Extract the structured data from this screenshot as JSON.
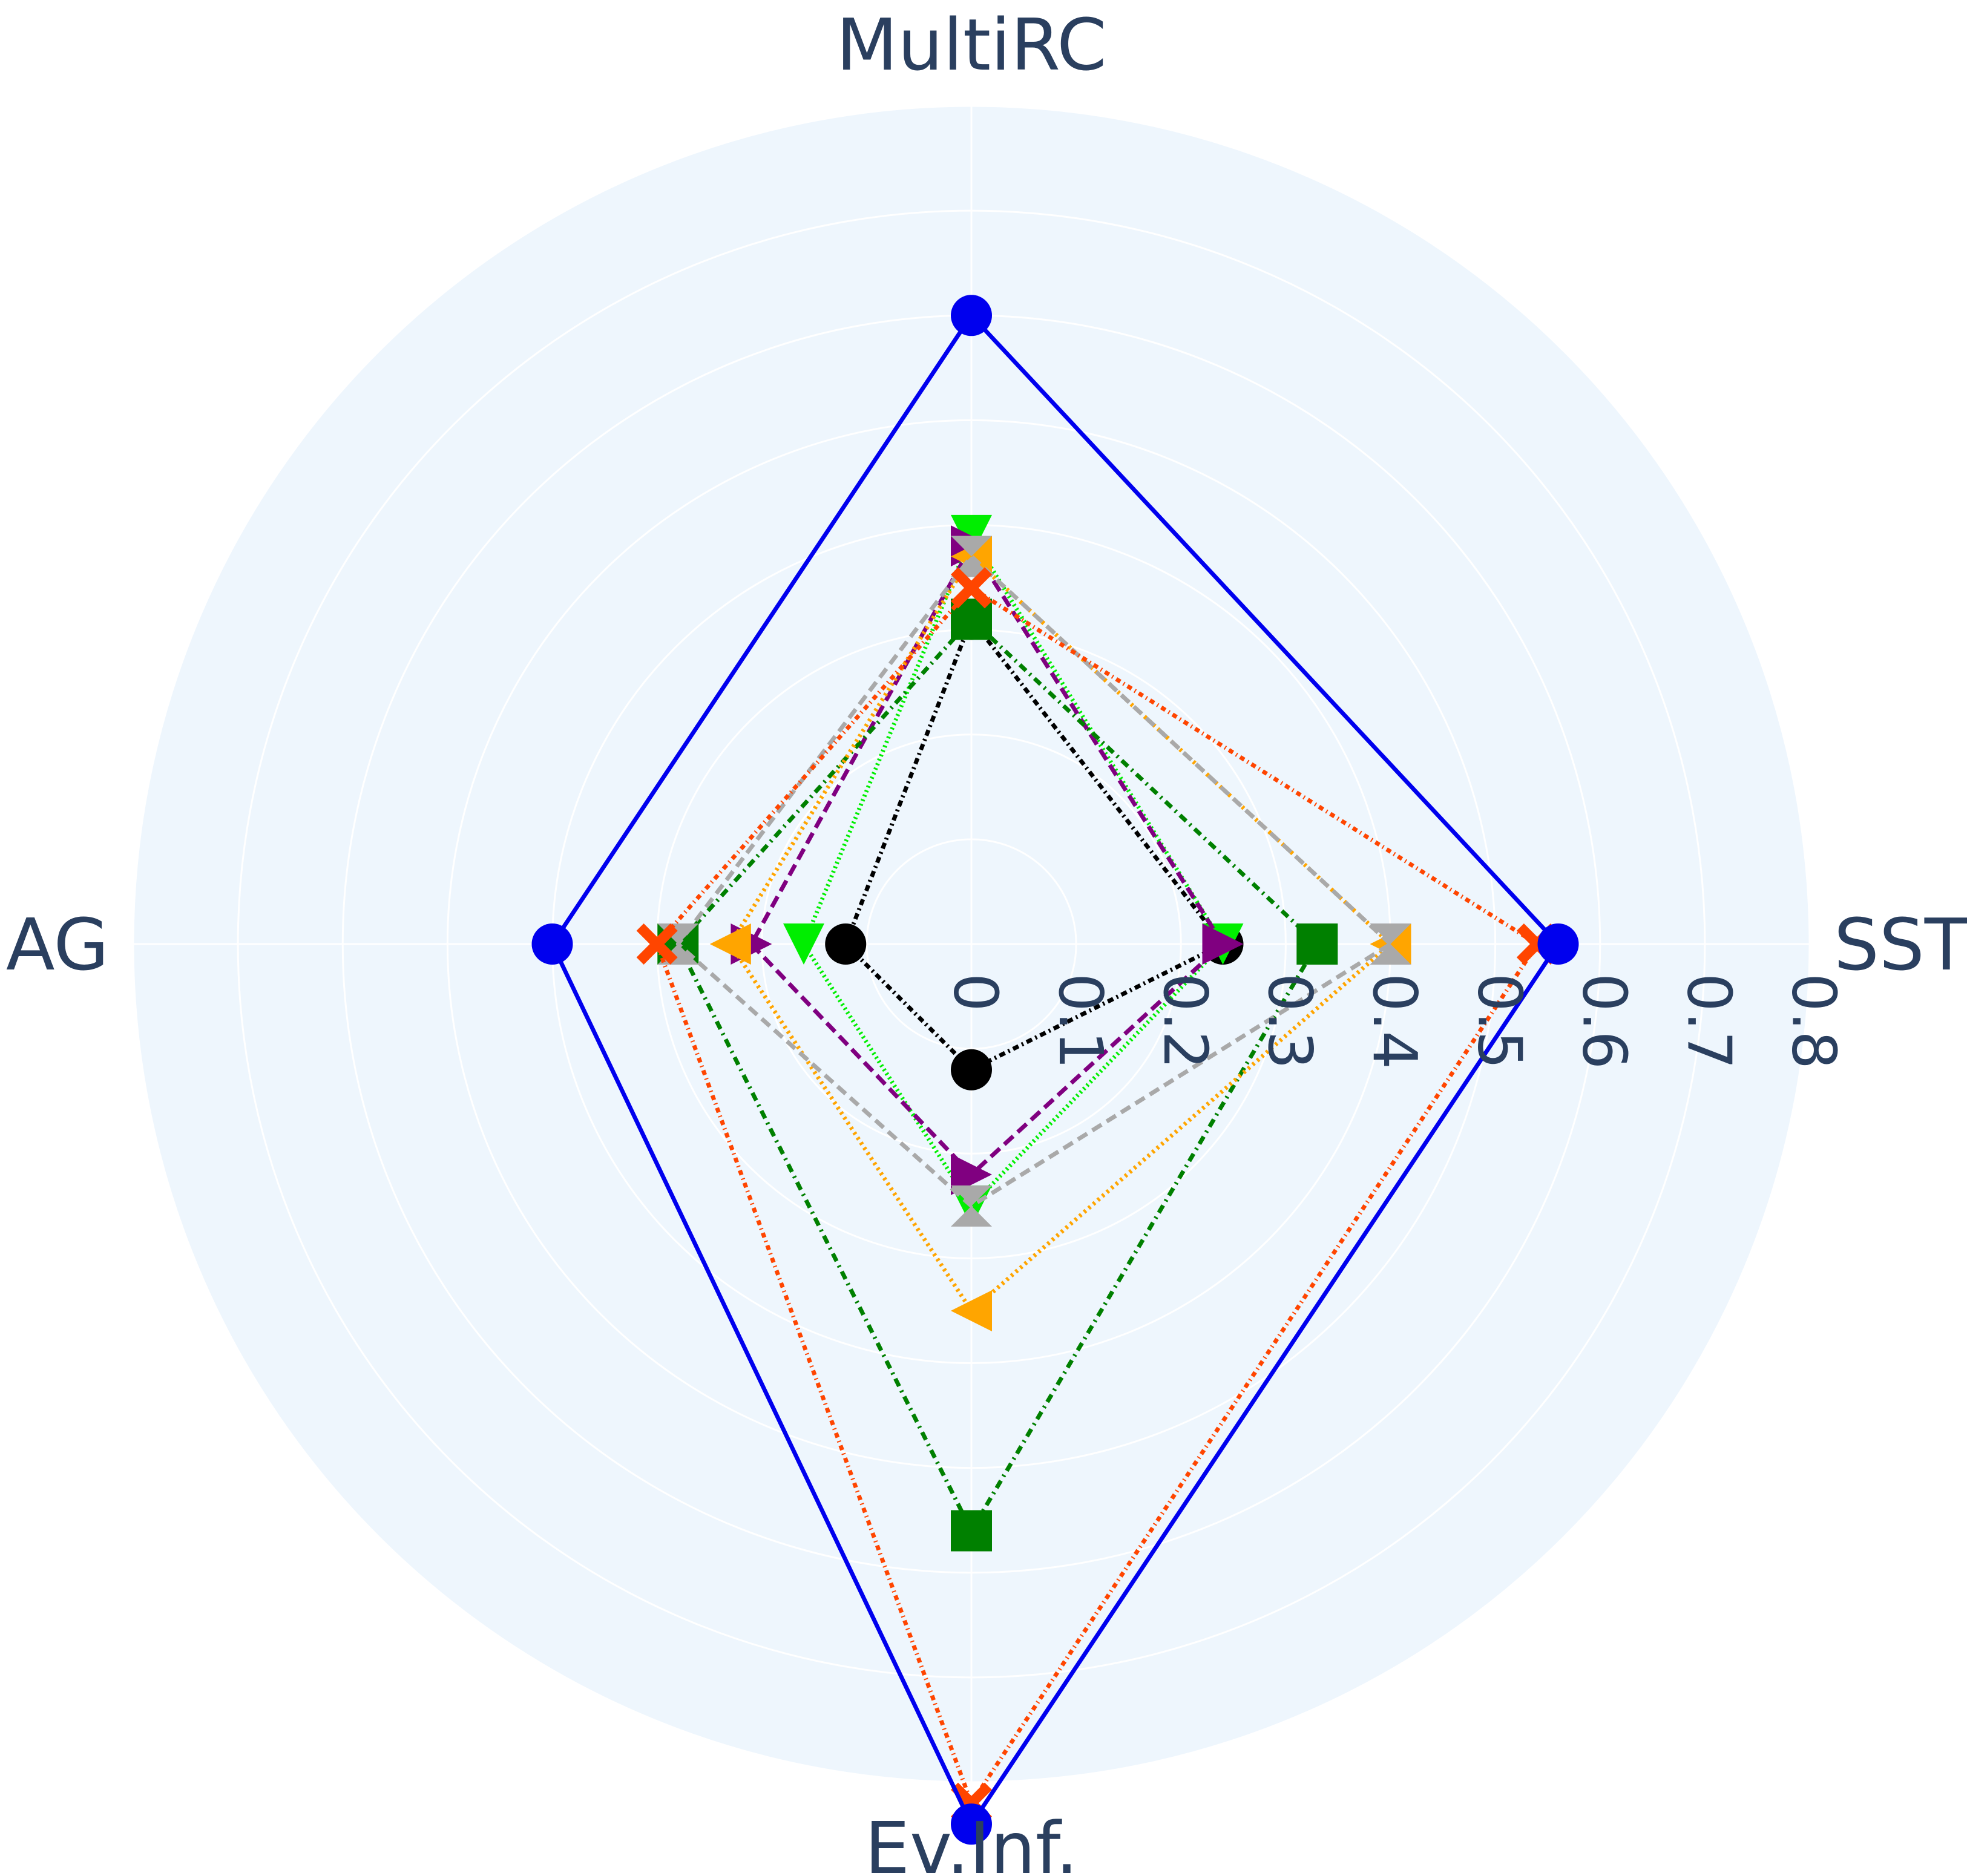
{
  "chart_data": {
    "type": "radar",
    "title": "",
    "axes": [
      "SST",
      "MultiRC",
      "AG",
      "Ev.Inf."
    ],
    "radial_range": [
      0,
      0.8
    ],
    "radial_ticks": [
      "0",
      "0.1",
      "0.2",
      "0.3",
      "0.4",
      "0.5",
      "0.6",
      "0.7",
      "0.8"
    ],
    "grid": true,
    "legend": "none",
    "background_color": "#eef6fd",
    "series": [
      {
        "values": [
          0.56,
          0.6,
          0.4,
          0.84
        ],
        "color": "#0000ee",
        "dash": "solid",
        "marker": "circle"
      },
      {
        "values": [
          0.54,
          0.34,
          0.3,
          0.82
        ],
        "color": "#ff4500",
        "dash": "8,6,2,6",
        "marker": "x"
      },
      {
        "values": [
          0.4,
          0.37,
          0.28,
          0.25
        ],
        "color": "#a9a9a9",
        "dash": "18,10",
        "marker": "hourglass"
      },
      {
        "values": [
          0.4,
          0.37,
          0.23,
          0.35
        ],
        "color": "#ffa500",
        "dash": "4,6",
        "marker": "triangle-left"
      },
      {
        "values": [
          0.33,
          0.31,
          0.28,
          0.56
        ],
        "color": "#008000",
        "dash": "14,8,3,8",
        "marker": "square"
      },
      {
        "values": [
          0.24,
          0.38,
          0.21,
          0.22
        ],
        "color": "#800080",
        "dash": "20,10",
        "marker": "triangle-right"
      },
      {
        "values": [
          0.24,
          0.39,
          0.16,
          0.25
        ],
        "color": "#00ee00",
        "dash": "3,5",
        "marker": "triangle-down"
      },
      {
        "values": [
          0.24,
          0.31,
          0.12,
          0.12
        ],
        "color": "#000000",
        "dash": "10,6,3,6",
        "marker": "circle"
      }
    ]
  }
}
